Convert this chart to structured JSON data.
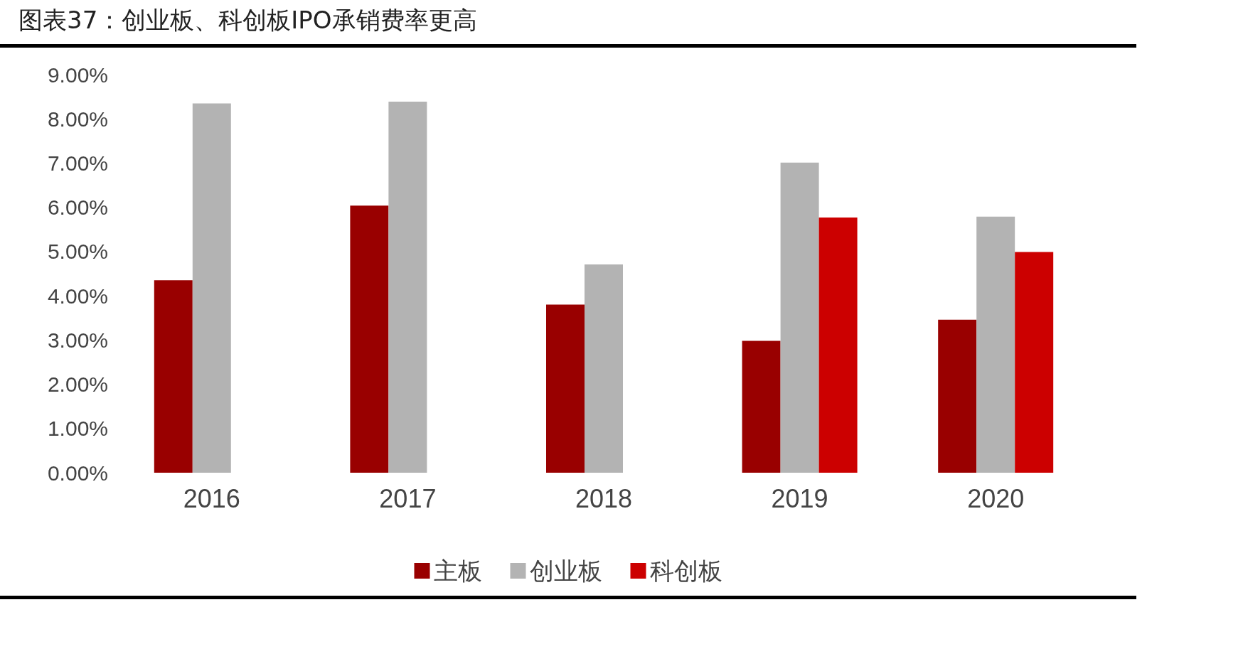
{
  "chart_data": {
    "type": "bar",
    "title": "图表37：创业板、科创板IPO承销费率更高",
    "categories": [
      "2016",
      "2017",
      "2018",
      "2019",
      "2020"
    ],
    "series": [
      {
        "name": "主板",
        "color": "#990000",
        "values": [
          4.35,
          6.04,
          3.8,
          2.98,
          3.46
        ]
      },
      {
        "name": "创业板",
        "color": "#b3b3b3",
        "values": [
          8.35,
          8.39,
          4.71,
          7.01,
          5.79
        ]
      },
      {
        "name": "科创板",
        "color": "#cc0000",
        "values": [
          null,
          null,
          null,
          5.77,
          4.99
        ]
      }
    ],
    "ylim": [
      0,
      9
    ],
    "yticks": [
      {
        "value": 0,
        "label": "0.00%"
      },
      {
        "value": 1,
        "label": "1.00%"
      },
      {
        "value": 2,
        "label": "2.00%"
      },
      {
        "value": 3,
        "label": "3.00%"
      },
      {
        "value": 4,
        "label": "4.00%"
      },
      {
        "value": 5,
        "label": "5.00%"
      },
      {
        "value": 6,
        "label": "6.00%"
      },
      {
        "value": 7,
        "label": "7.00%"
      },
      {
        "value": 8,
        "label": "8.00%"
      },
      {
        "value": 9,
        "label": "9.00%"
      }
    ],
    "grid": false,
    "legend": "bottom"
  }
}
